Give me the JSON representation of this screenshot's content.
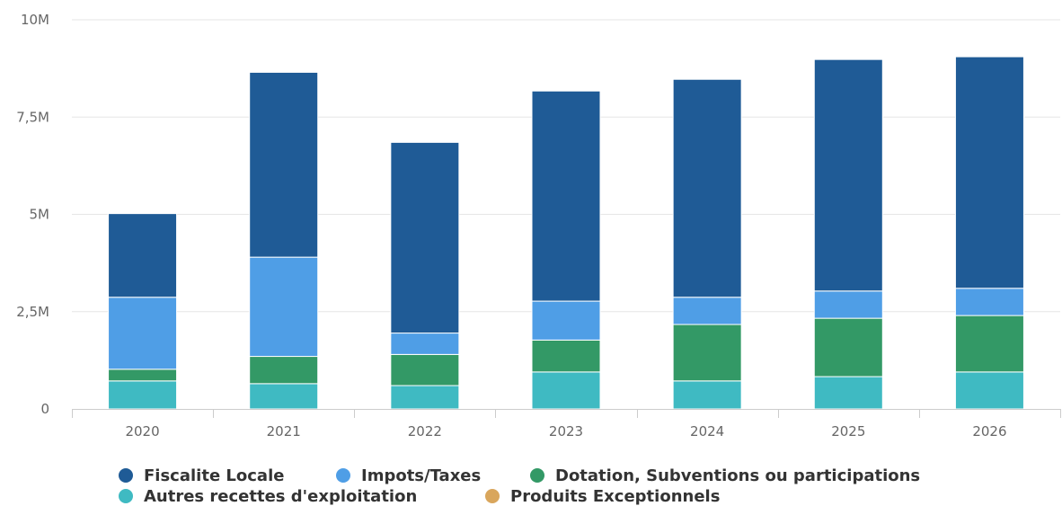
{
  "chart_data": {
    "type": "bar",
    "stacked": true,
    "categories": [
      "2020",
      "2021",
      "2022",
      "2023",
      "2024",
      "2025",
      "2026"
    ],
    "y_ticks": [
      {
        "value": 0,
        "label": "0"
      },
      {
        "value": 2500000,
        "label": "2,5M"
      },
      {
        "value": 5000000,
        "label": "5M"
      },
      {
        "value": 7500000,
        "label": "7,5M"
      },
      {
        "value": 10000000,
        "label": "10M"
      }
    ],
    "ylim": [
      0,
      10000000
    ],
    "grid": true,
    "legend_position": "bottom",
    "series": [
      {
        "name": "Autres recettes d'exploitation",
        "color": "#3fbac2",
        "values": [
          720000,
          650000,
          600000,
          950000,
          720000,
          830000,
          950000
        ]
      },
      {
        "name": "Dotation, Subventions ou participations",
        "color": "#339966",
        "values": [
          300000,
          700000,
          800000,
          820000,
          1450000,
          1500000,
          1450000
        ]
      },
      {
        "name": "Impots/Taxes",
        "color": "#4f9ee6",
        "values": [
          1850000,
          2550000,
          550000,
          1000000,
          700000,
          700000,
          700000
        ]
      },
      {
        "name": "Fiscalite Locale",
        "color": "#1f5b96",
        "values": [
          2150000,
          4750000,
          4900000,
          5400000,
          5600000,
          5950000,
          5950000
        ]
      },
      {
        "name": "Produits Exceptionnels",
        "color": "#d9a65c",
        "values": [
          0,
          0,
          0,
          0,
          0,
          0,
          0
        ]
      }
    ],
    "legend_order": [
      "Fiscalite Locale",
      "Impots/Taxes",
      "Dotation, Subventions ou participations",
      "Autres recettes d'exploitation",
      "Produits Exceptionnels"
    ]
  }
}
